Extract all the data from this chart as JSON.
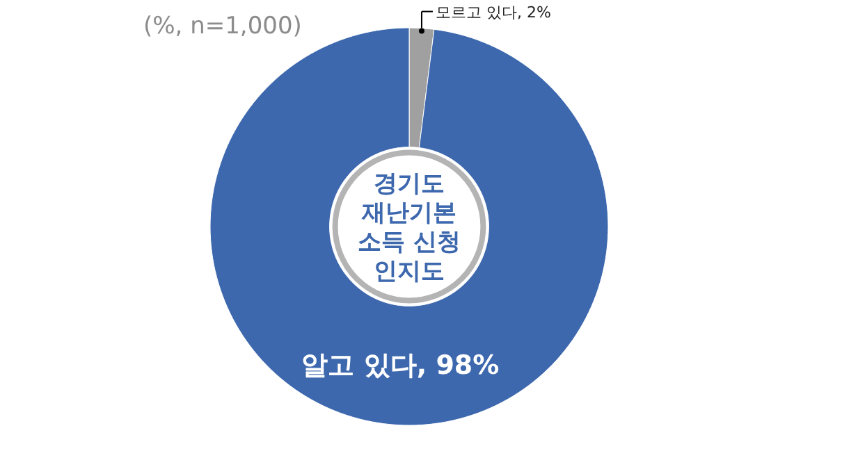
{
  "chart_data": {
    "type": "donut",
    "title": "경기도 재난기본 소득 신청 인지도",
    "annotations": [
      "(%, n=1,000)"
    ],
    "categories": [
      "모르고 있다",
      "알고 있다"
    ],
    "values": [
      2,
      98
    ],
    "colors": [
      "#a0a0a0",
      "#3d68ae"
    ],
    "value_labels": [
      ", 2%",
      ", 98%"
    ]
  }
}
